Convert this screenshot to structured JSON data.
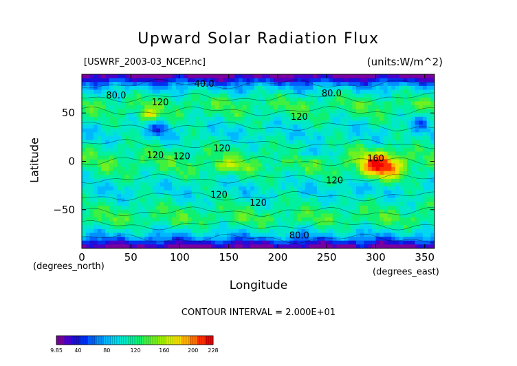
{
  "chart_data": {
    "type": "heatmap",
    "title": "Upward Solar Radiation Flux",
    "source_label": "[USWRF_2003-03_NCEP.nc]",
    "units_label": "(units:W/m^2)",
    "xlabel": "Longitude",
    "ylabel": "Latitude",
    "x_unit_label": "(degrees_east)",
    "y_unit_label": "(degrees_north)",
    "xlim": [
      0,
      360
    ],
    "ylim": [
      -90,
      90
    ],
    "x_ticks": [
      0,
      50,
      100,
      150,
      200,
      250,
      300,
      350
    ],
    "y_ticks": [
      -50,
      0,
      50
    ],
    "contour_interval_text": "CONTOUR INTERVAL = 2.000E+01",
    "contour_labels": [
      {
        "text": "40.0",
        "x": 125,
        "y": 80
      },
      {
        "text": "80.0",
        "x": 35,
        "y": 68
      },
      {
        "text": "80.0",
        "x": 255,
        "y": 70
      },
      {
        "text": "120",
        "x": 80,
        "y": 61
      },
      {
        "text": "120",
        "x": 222,
        "y": 46
      },
      {
        "text": "120",
        "x": 143,
        "y": 13
      },
      {
        "text": "120",
        "x": 75,
        "y": 6
      },
      {
        "text": "120",
        "x": 102,
        "y": 5
      },
      {
        "text": "120",
        "x": 140,
        "y": -35
      },
      {
        "text": "120",
        "x": 180,
        "y": -43
      },
      {
        "text": "160",
        "x": 300,
        "y": 3
      },
      {
        "text": "120",
        "x": 258,
        "y": -20
      },
      {
        "text": "80.0",
        "x": 222,
        "y": -77
      }
    ],
    "colorbar": {
      "min": 9.85,
      "max": 228,
      "tick_labels": [
        "9.85",
        "40",
        "80",
        "120",
        "160",
        "200",
        "228"
      ],
      "tick_values": [
        9.85,
        40,
        80,
        120,
        160,
        200,
        228
      ],
      "colors": [
        "#7a00a0",
        "#4a00c8",
        "#1a10dc",
        "#0030f0",
        "#0060ff",
        "#0090ff",
        "#00b8ff",
        "#00d8f0",
        "#00e8c8",
        "#00f0a0",
        "#10f070",
        "#40f040",
        "#70f020",
        "#a0f000",
        "#d0f000",
        "#f0e000",
        "#ffb000",
        "#ff7000",
        "#ff3000",
        "#f00000"
      ]
    }
  }
}
